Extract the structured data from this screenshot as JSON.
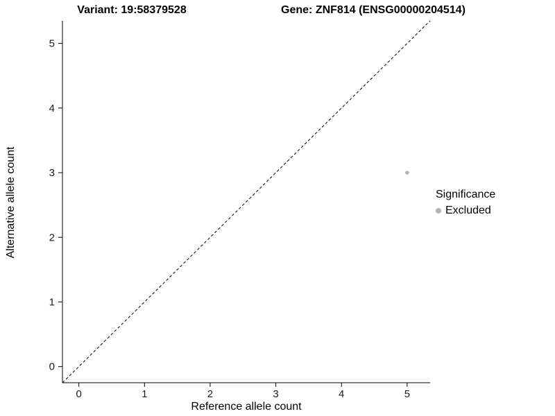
{
  "chart_data": {
    "type": "scatter",
    "title_left": "Variant: 19:58379528",
    "title_right": "Gene: ZNF814 (ENSG00000204514)",
    "xlabel": "Reference allele count",
    "ylabel": "Alternative allele count",
    "xlim": [
      -0.25,
      5.35
    ],
    "ylim": [
      -0.25,
      5.35
    ],
    "xticks": [
      "0",
      "1",
      "2",
      "3",
      "4",
      "5"
    ],
    "yticks": [
      "0",
      "1",
      "2",
      "3",
      "4",
      "5"
    ],
    "grid": false,
    "background": "#ffffff",
    "axis_color": "#000000",
    "identity_line": {
      "style": "dashed",
      "color": "#000000",
      "from": [
        -0.25,
        -0.25
      ],
      "to": [
        5.35,
        5.35
      ]
    },
    "points": [
      {
        "x": 5,
        "y": 3,
        "series": "Excluded",
        "color": "#b3b3b3"
      }
    ],
    "legend": {
      "position": "right",
      "title": "Significance",
      "entries": [
        {
          "label": "Excluded",
          "color": "#b3b3b3"
        }
      ]
    }
  }
}
